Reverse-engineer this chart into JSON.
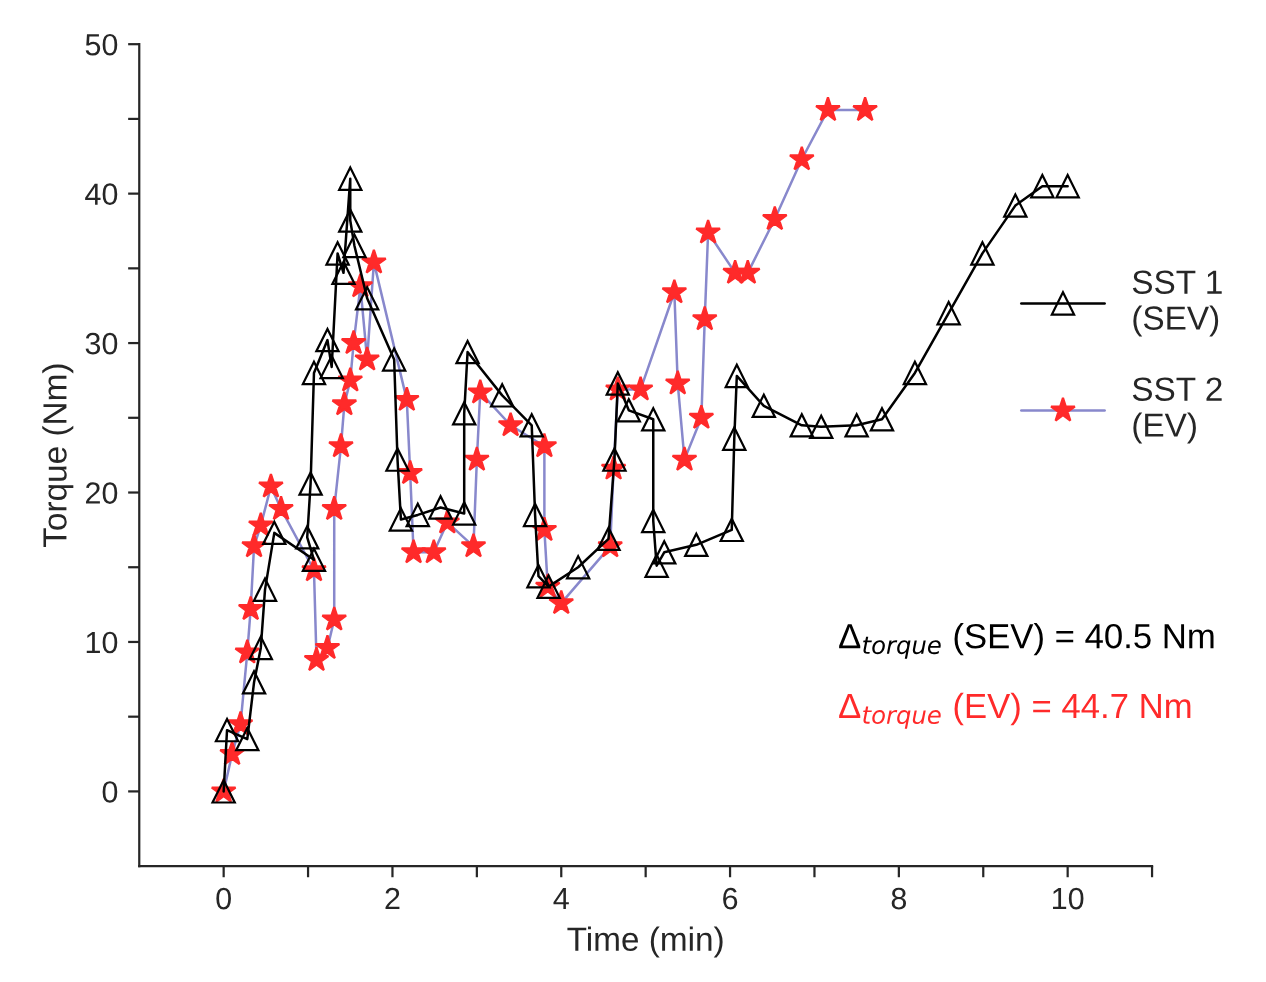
{
  "chart_data": {
    "type": "line",
    "xlabel": "Time (min)",
    "ylabel": "Torque (Nm)",
    "xlim": [
      -1,
      11
    ],
    "ylim": [
      -5,
      50
    ],
    "xticks": [
      0,
      {
        "value": 1,
        "label": null
      },
      2,
      {
        "value": 3,
        "label": null
      },
      4,
      {
        "value": 5,
        "label": null
      },
      6,
      {
        "value": 7,
        "label": null
      },
      8,
      {
        "value": 9,
        "label": null
      },
      10,
      {
        "value": 11,
        "label": null
      }
    ],
    "yticks": [
      0,
      {
        "value": 5,
        "label": null
      },
      10,
      {
        "value": 15,
        "label": null
      },
      20,
      {
        "value": 25,
        "label": null
      },
      30,
      {
        "value": 35,
        "label": null
      },
      40,
      {
        "value": 45,
        "label": null
      },
      50
    ],
    "grid": false,
    "legend": "right",
    "annotations": [
      "Δ$_{torque}$ (SEV) = 40.5 Nm",
      "Δ$_{torque}$ (EV) = 44.7 Nm"
    ],
    "series": [
      {
        "name": "SST 1\n(SEV)",
        "color": "#000000",
        "marker": "triangle",
        "x": [
          0,
          0.04,
          0.28,
          0.36,
          0.44,
          0.49,
          0.6,
          1.07,
          0.99,
          1.03,
          1.07,
          1.23,
          1.28,
          1.35,
          1.42,
          1.5,
          1.5,
          1.55,
          1.7,
          2.02,
          2.06,
          2.1,
          2.3,
          2.57,
          2.85,
          2.85,
          2.89,
          3.3,
          3.65,
          3.69,
          3.73,
          3.85,
          4.2,
          4.56,
          4.63,
          4.67,
          4.8,
          5.09,
          5.09,
          5.13,
          5.22,
          5.6,
          6.02,
          6.05,
          6.08,
          6.4,
          6.85,
          7.08,
          7.5,
          7.8,
          8.19,
          8.59,
          8.99,
          9.38,
          9.7,
          10
        ],
        "values": [
          0,
          4.1,
          3.5,
          7.3,
          9.6,
          13.5,
          17.3,
          15.5,
          17,
          20.6,
          28,
          30.2,
          28.4,
          36,
          34.7,
          41,
          38.2,
          36.5,
          33,
          28.9,
          22.2,
          18.2,
          18.5,
          19,
          18.6,
          25.3,
          29.4,
          26.5,
          24.5,
          18.5,
          14.4,
          13.7,
          15,
          16.9,
          22.2,
          27.3,
          25.5,
          24.9,
          18.1,
          15.1,
          16,
          16.5,
          17.5,
          23.6,
          27.8,
          25.8,
          24.5,
          24.4,
          24.5,
          24.9,
          28,
          32,
          36,
          39.2,
          40.5,
          40.5
        ]
      },
      {
        "name": "SST 2\n(EV)",
        "color": "#ff2a2a",
        "marker": "star",
        "x": [
          0,
          0.1,
          0.2,
          0.28,
          0.32,
          0.36,
          0.44,
          0.56,
          0.68,
          1.07,
          1.1,
          1.23,
          1.31,
          1.31,
          1.39,
          1.43,
          1.5,
          1.54,
          1.62,
          1.7,
          1.78,
          2.17,
          2.21,
          2.25,
          2.49,
          2.65,
          2.96,
          3.0,
          3.04,
          3.4,
          3.8,
          3.8,
          3.84,
          4.0,
          4.58,
          4.62,
          4.67,
          4.94,
          5.34,
          5.38,
          5.46,
          5.66,
          5.7,
          5.74,
          6.06,
          6.21,
          6.53,
          6.85,
          7.16,
          7.6
        ],
        "values": [
          0,
          2.5,
          4.5,
          9.3,
          12.2,
          16.4,
          17.8,
          20.4,
          18.9,
          14.8,
          8.8,
          9.6,
          11.5,
          18.9,
          23.1,
          25.9,
          27.5,
          30,
          33.8,
          28.9,
          35.4,
          26.2,
          21.3,
          16,
          16,
          18,
          16.4,
          22.2,
          26.7,
          24.5,
          23.1,
          17.5,
          13.7,
          12.6,
          16.4,
          21.6,
          26.9,
          26.9,
          33.4,
          27.3,
          22.2,
          25,
          31.6,
          37.4,
          34.7,
          34.7,
          38.3,
          42.3,
          45.6,
          45.6
        ]
      }
    ]
  }
}
